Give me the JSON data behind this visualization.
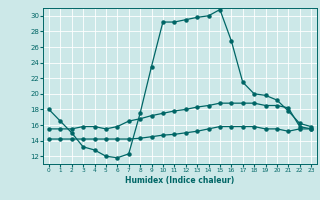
{
  "xlabel": "Humidex (Indice chaleur)",
  "xlim": [
    -0.5,
    23.5
  ],
  "ylim": [
    11,
    31
  ],
  "xticks": [
    0,
    1,
    2,
    3,
    4,
    5,
    6,
    7,
    8,
    9,
    10,
    11,
    12,
    13,
    14,
    15,
    16,
    17,
    18,
    19,
    20,
    21,
    22,
    23
  ],
  "yticks": [
    12,
    14,
    16,
    18,
    20,
    22,
    24,
    26,
    28,
    30
  ],
  "bg_color": "#cce8e8",
  "line_color": "#006666",
  "line_main_x": [
    0,
    1,
    2,
    3,
    4,
    5,
    6,
    7,
    8,
    9,
    10,
    11,
    12,
    13,
    14,
    15,
    16,
    17,
    18,
    19,
    20,
    21,
    22,
    23
  ],
  "line_main_y": [
    18.0,
    16.5,
    15.0,
    13.2,
    12.8,
    12.0,
    11.8,
    12.3,
    17.5,
    23.5,
    29.2,
    29.2,
    29.5,
    29.8,
    30.0,
    30.8,
    26.8,
    21.5,
    20.0,
    19.8,
    19.2,
    17.8,
    16.2,
    15.8
  ],
  "line_upper_x": [
    0,
    1,
    2,
    3,
    4,
    5,
    6,
    7,
    8,
    9,
    10,
    11,
    12,
    13,
    14,
    15,
    16,
    17,
    18,
    19,
    20,
    21,
    22,
    23
  ],
  "line_upper_y": [
    15.5,
    15.5,
    15.5,
    15.8,
    15.8,
    15.5,
    15.8,
    16.5,
    16.8,
    17.2,
    17.5,
    17.8,
    18.0,
    18.3,
    18.5,
    18.8,
    18.8,
    18.8,
    18.8,
    18.5,
    18.5,
    18.2,
    15.8,
    15.5
  ],
  "line_lower_x": [
    0,
    1,
    2,
    3,
    4,
    5,
    6,
    7,
    8,
    9,
    10,
    11,
    12,
    13,
    14,
    15,
    16,
    17,
    18,
    19,
    20,
    21,
    22,
    23
  ],
  "line_lower_y": [
    14.2,
    14.2,
    14.2,
    14.2,
    14.2,
    14.2,
    14.2,
    14.2,
    14.3,
    14.5,
    14.7,
    14.8,
    15.0,
    15.2,
    15.5,
    15.8,
    15.8,
    15.8,
    15.8,
    15.5,
    15.5,
    15.2,
    15.5,
    15.5
  ]
}
